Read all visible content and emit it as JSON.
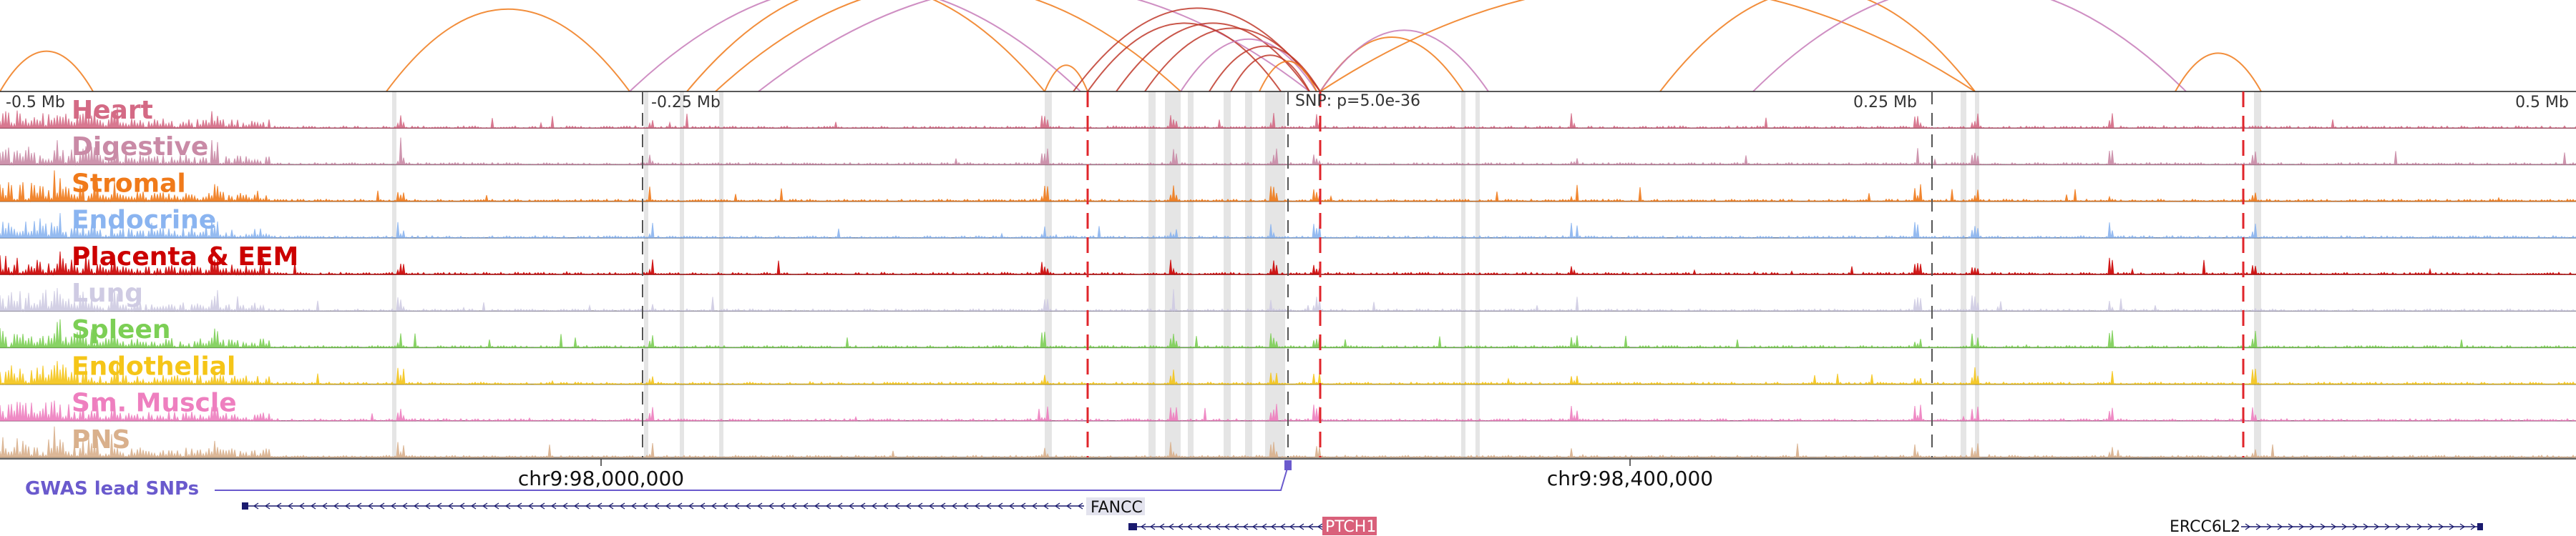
{
  "position_labels": {
    "left": "-0.5 Mb",
    "left_mid": "-0.25 Mb",
    "right_mid": "0.25 Mb",
    "right": "0.5 Mb"
  },
  "snp_label": "SNP: p=5.0e-36",
  "chrom_labels": [
    "chr9:98,000,000",
    "chr9:98,400,000"
  ],
  "gwas_label": "GWAS lead SNPs",
  "genes": [
    {
      "name": "FANCC",
      "strand": "-",
      "highlight": false
    },
    {
      "name": "PTCH1",
      "strand": "-",
      "highlight": true
    },
    {
      "name": "ERCC6L2",
      "strand": "+",
      "highlight": false
    }
  ],
  "tracks": [
    {
      "name": "Heart",
      "color": "#d46a85"
    },
    {
      "name": "Digestive",
      "color": "#c98aa6"
    },
    {
      "name": "Stromal",
      "color": "#f07a1a"
    },
    {
      "name": "Endocrine",
      "color": "#8ab4f0"
    },
    {
      "name": "Placenta & EEM",
      "color": "#cc0000"
    },
    {
      "name": "Lung",
      "color": "#cfcbe3"
    },
    {
      "name": "Spleen",
      "color": "#7ccf55"
    },
    {
      "name": "Endothelial",
      "color": "#f5c518"
    },
    {
      "name": "Sm. Muscle",
      "color": "#ee7fbf"
    },
    {
      "name": "PNS",
      "color": "#d9b08c"
    }
  ],
  "colors": {
    "loop_orange": "#f07a1a",
    "loop_pink": "#c77bb8",
    "loop_red": "#c0392b",
    "snp_line": "#e0252b",
    "gwas": "#6a5acd",
    "gene": "#1a1a6e",
    "highlight_gene": "#d9607a"
  }
}
